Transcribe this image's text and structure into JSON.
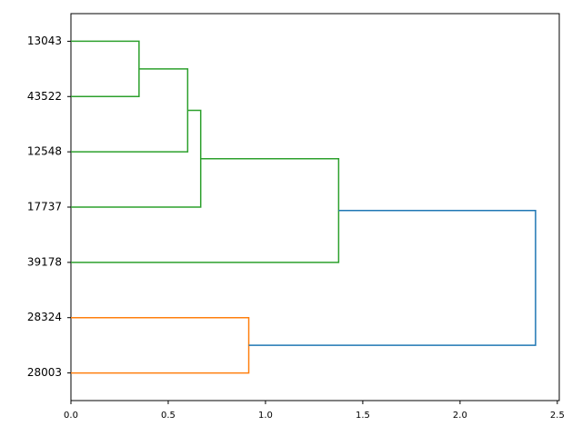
{
  "chart_data": {
    "type": "dendrogram",
    "leaves": [
      "13043",
      "43522",
      "12548",
      "17737",
      "39178",
      "28324",
      "28003"
    ],
    "merges": [
      {
        "children": [
          0,
          1
        ],
        "height": 0.35,
        "color": "#2ca02c"
      },
      {
        "children": [
          7,
          2
        ],
        "height": 0.6,
        "color": "#2ca02c"
      },
      {
        "children": [
          8,
          3
        ],
        "height": 0.667,
        "color": "#2ca02c"
      },
      {
        "children": [
          9,
          4
        ],
        "height": 1.376,
        "color": "#2ca02c"
      },
      {
        "children": [
          5,
          6
        ],
        "height": 0.914,
        "color": "#ff7f0e"
      },
      {
        "children": [
          10,
          11
        ],
        "height": 2.388,
        "color": "#1f77b4"
      }
    ],
    "xlim": [
      0,
      2.51
    ],
    "xticks": [
      {
        "value": 0,
        "label": "0.0"
      },
      {
        "value": 0.5,
        "label": "0.5"
      },
      {
        "value": 1,
        "label": "1.0"
      },
      {
        "value": 1.5,
        "label": "1.5"
      },
      {
        "value": 2,
        "label": "2.0"
      },
      {
        "value": 2.5,
        "label": "2.5"
      }
    ]
  }
}
